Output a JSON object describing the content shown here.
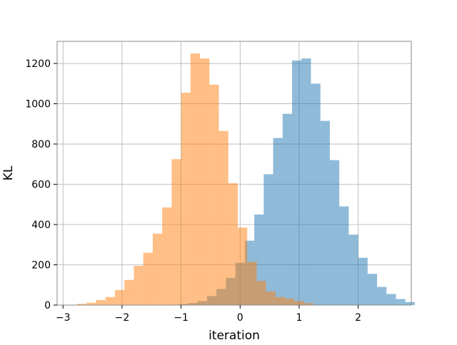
{
  "chart_data": {
    "type": "bar",
    "subtype": "overlaid-histogram",
    "title": "",
    "xlabel": "iteration",
    "ylabel": "KL",
    "xlim": [
      -3.1,
      2.9
    ],
    "ylim": [
      0,
      1310
    ],
    "xticks": [
      -3,
      -2,
      -1,
      0,
      1,
      2
    ],
    "xtick_labels": [
      "−3",
      "−2",
      "−1",
      "0",
      "1",
      "2"
    ],
    "yticks": [
      0,
      200,
      400,
      600,
      800,
      1000,
      1200
    ],
    "ytick_labels": [
      "0",
      "200",
      "400",
      "600",
      "800",
      "1000",
      "1200"
    ],
    "grid": true,
    "legend": "none",
    "bin_width": 0.16,
    "series": [
      {
        "color": "#1f77b4",
        "alpha": 0.5,
        "bin_start": -1.2,
        "values": [
          2,
          5,
          10,
          20,
          45,
          80,
          135,
          210,
          320,
          450,
          650,
          830,
          950,
          1215,
          1225,
          1100,
          915,
          720,
          490,
          350,
          235,
          155,
          90,
          55,
          30,
          15
        ]
      },
      {
        "color": "#ff7f0e",
        "alpha": 0.5,
        "bin_start": -2.76,
        "values": [
          6,
          12,
          25,
          40,
          75,
          125,
          195,
          260,
          355,
          485,
          725,
          1055,
          1250,
          1225,
          1095,
          865,
          605,
          385,
          215,
          120,
          68,
          40,
          32,
          20,
          10
        ]
      }
    ]
  }
}
